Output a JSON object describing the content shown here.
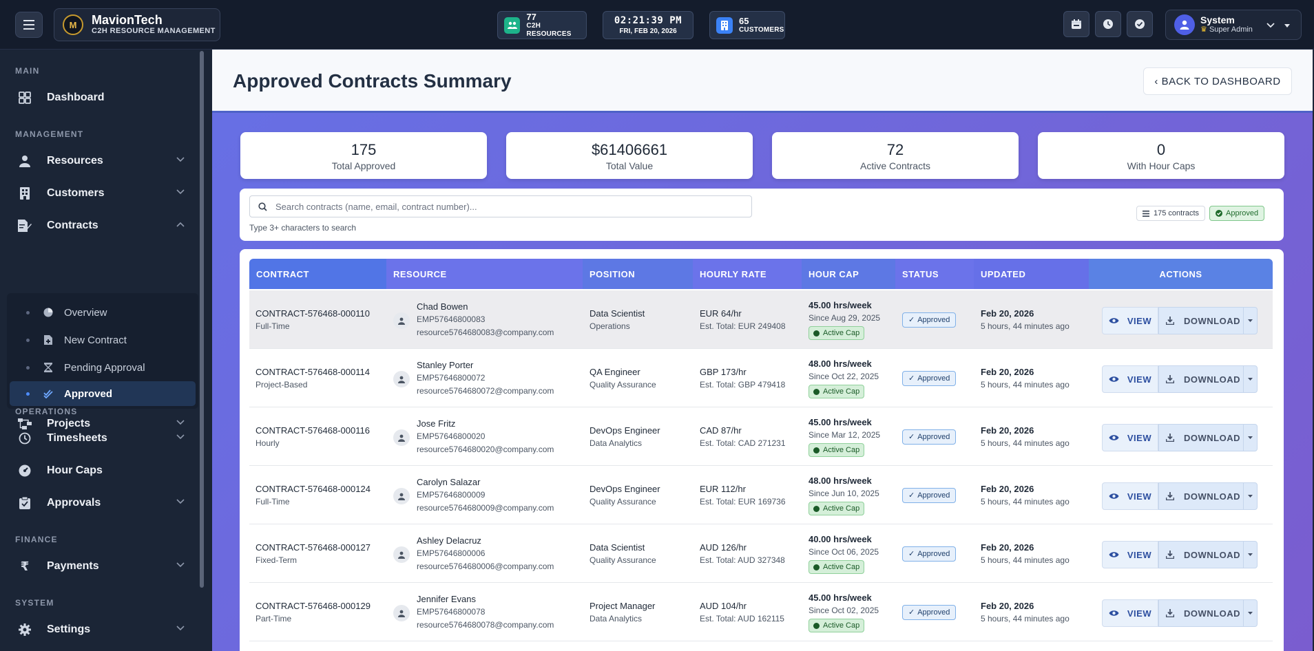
{
  "brand": {
    "logo": "M",
    "name": "MavionTech",
    "subtitle": "C2H RESOURCE MANAGEMENT"
  },
  "topbar": {
    "resources": {
      "count": "77",
      "label": "C2H RESOURCES",
      "icon": "users-icon",
      "color": "#1db38a"
    },
    "clock": {
      "time": "02:21:39  PM",
      "date": "FRI, FEB 20, 2026"
    },
    "customers": {
      "count": "65",
      "label": "CUSTOMERS",
      "icon": "building-icon",
      "color": "#3b82f6"
    },
    "user": {
      "name": "System",
      "role": "Super Admin"
    }
  },
  "sidebar": {
    "sections": {
      "main": "MAIN",
      "management": "MANAGEMENT",
      "operations": "OPERATIONS",
      "finance": "FINANCE",
      "system": "SYSTEM"
    },
    "items": {
      "dashboard": "Dashboard",
      "resources": "Resources",
      "customers": "Customers",
      "contracts": "Contracts",
      "projects": "Projects",
      "timesheets": "Timesheets",
      "hour_caps": "Hour Caps",
      "approvals": "Approvals",
      "payments": "Payments",
      "settings": "Settings"
    },
    "contracts_sub": {
      "overview": "Overview",
      "new_contract": "New Contract",
      "pending_approval": "Pending Approval",
      "approved": "Approved"
    }
  },
  "page": {
    "title": "Approved Contracts Summary",
    "back_label": "‹ BACK TO DASHBOARD"
  },
  "summary": {
    "total_approved": {
      "value": "175",
      "label": "Total Approved"
    },
    "total_value": {
      "value": "$61406661",
      "label": "Total Value"
    },
    "active_contracts": {
      "value": "72",
      "label": "Active Contracts"
    },
    "with_hour_caps": {
      "value": "0",
      "label": "With Hour Caps"
    }
  },
  "search": {
    "placeholder": "Search contracts (name, email, contract number)...",
    "hint": "Type 3+ characters to search",
    "count_label": "175 contracts",
    "status_label": "Approved"
  },
  "table": {
    "headers": {
      "contract": "CONTRACT",
      "resource": "RESOURCE",
      "position": "POSITION",
      "rate": "HOURLY RATE",
      "hour_cap": "HOUR CAP",
      "status": "STATUS",
      "updated": "UPDATED",
      "actions": "ACTIONS"
    },
    "view_label": "VIEW",
    "download_label": "DOWNLOAD",
    "rows": [
      {
        "contract": "CONTRACT-576468-000110",
        "type": "Full-Time",
        "name": "Chad Bowen",
        "emp": "EMP57646800083",
        "email": "resource5764680083@company.com",
        "position": "Data Scientist",
        "dept": "Operations",
        "rate": "EUR 64/hr",
        "est": "Est. Total: EUR 249408",
        "cap": "45.00 hrs/week",
        "since": "Since Aug 29, 2025",
        "cap_status": "Active Cap",
        "status": "Approved",
        "date": "Feb 20, 2026",
        "ago": "5 hours, 44 minutes ago"
      },
      {
        "contract": "CONTRACT-576468-000114",
        "type": "Project-Based",
        "name": "Stanley Porter",
        "emp": "EMP57646800072",
        "email": "resource5764680072@company.com",
        "position": "QA Engineer",
        "dept": "Quality Assurance",
        "rate": "GBP 173/hr",
        "est": "Est. Total: GBP 479418",
        "cap": "48.00 hrs/week",
        "since": "Since Oct 22, 2025",
        "cap_status": "Active Cap",
        "status": "Approved",
        "date": "Feb 20, 2026",
        "ago": "5 hours, 44 minutes ago"
      },
      {
        "contract": "CONTRACT-576468-000116",
        "type": "Hourly",
        "name": "Jose Fritz",
        "emp": "EMP57646800020",
        "email": "resource5764680020@company.com",
        "position": "DevOps Engineer",
        "dept": "Data Analytics",
        "rate": "CAD 87/hr",
        "est": "Est. Total: CAD 271231",
        "cap": "45.00 hrs/week",
        "since": "Since Mar 12, 2025",
        "cap_status": "Active Cap",
        "status": "Approved",
        "date": "Feb 20, 2026",
        "ago": "5 hours, 44 minutes ago"
      },
      {
        "contract": "CONTRACT-576468-000124",
        "type": "Full-Time",
        "name": "Carolyn Salazar",
        "emp": "EMP57646800009",
        "email": "resource5764680009@company.com",
        "position": "DevOps Engineer",
        "dept": "Quality Assurance",
        "rate": "EUR 112/hr",
        "est": "Est. Total: EUR 169736",
        "cap": "48.00 hrs/week",
        "since": "Since Jun 10, 2025",
        "cap_status": "Active Cap",
        "status": "Approved",
        "date": "Feb 20, 2026",
        "ago": "5 hours, 44 minutes ago"
      },
      {
        "contract": "CONTRACT-576468-000127",
        "type": "Fixed-Term",
        "name": "Ashley Delacruz",
        "emp": "EMP57646800006",
        "email": "resource5764680006@company.com",
        "position": "Data Scientist",
        "dept": "Quality Assurance",
        "rate": "AUD 126/hr",
        "est": "Est. Total: AUD 327348",
        "cap": "40.00 hrs/week",
        "since": "Since Oct 06, 2025",
        "cap_status": "Active Cap",
        "status": "Approved",
        "date": "Feb 20, 2026",
        "ago": "5 hours, 44 minutes ago"
      },
      {
        "contract": "CONTRACT-576468-000129",
        "type": "Part-Time",
        "name": "Jennifer Evans",
        "emp": "EMP57646800078",
        "email": "resource5764680078@company.com",
        "position": "Project Manager",
        "dept": "Data Analytics",
        "rate": "AUD 104/hr",
        "est": "Est. Total: AUD 162115",
        "cap": "45.00 hrs/week",
        "since": "Since Oct 02, 2025",
        "cap_status": "Active Cap",
        "status": "Approved",
        "date": "Feb 20, 2026",
        "ago": "5 hours, 44 minutes ago"
      }
    ]
  }
}
